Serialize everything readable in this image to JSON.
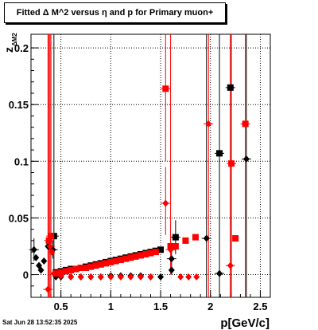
{
  "title": "Fitted Δ M^2 versus η and p for Primary muon+",
  "timestamp": "Sat Jun 28 13:52:35 2025",
  "chart_data": {
    "type": "scatter",
    "xlabel": "p[GeV/c]",
    "ylabel": "z",
    "ylabel_sub": "ΔM2",
    "xlim": [
      0.2,
      2.6
    ],
    "ylim": [
      -0.02,
      0.212
    ],
    "grid": true,
    "x_ticks": [
      {
        "value": 0.5,
        "label": "0.5"
      },
      {
        "value": 1.0,
        "label": "1"
      },
      {
        "value": 1.5,
        "label": "1.5"
      },
      {
        "value": 2.0,
        "label": "2"
      },
      {
        "value": 2.5,
        "label": "2.5"
      }
    ],
    "y_ticks": [
      {
        "value": 0,
        "label": "0"
      },
      {
        "value": 0.05,
        "label": "0.05"
      },
      {
        "value": 0.1,
        "label": "0.1"
      },
      {
        "value": 0.15,
        "label": "0.15"
      },
      {
        "value": 0.2,
        "label": "0.2"
      }
    ],
    "series": [
      {
        "color": "#000000",
        "marker": "square",
        "points": [
          {
            "x": 0.43,
            "y": 0.034,
            "ylo": -0.02,
            "yhi": 0.212
          },
          {
            "x": 0.45,
            "y": 0.002
          },
          {
            "x": 0.5,
            "y": 0.003
          },
          {
            "x": 0.55,
            "y": 0.004
          },
          {
            "x": 0.6,
            "y": 0.005
          },
          {
            "x": 0.65,
            "y": 0.005
          },
          {
            "x": 0.7,
            "y": 0.006
          },
          {
            "x": 0.75,
            "y": 0.007
          },
          {
            "x": 0.8,
            "y": 0.008
          },
          {
            "x": 0.85,
            "y": 0.009
          },
          {
            "x": 0.9,
            "y": 0.01
          },
          {
            "x": 0.95,
            "y": 0.011
          },
          {
            "x": 1.0,
            "y": 0.012
          },
          {
            "x": 1.05,
            "y": 0.013
          },
          {
            "x": 1.1,
            "y": 0.014
          },
          {
            "x": 1.15,
            "y": 0.015
          },
          {
            "x": 1.2,
            "y": 0.016
          },
          {
            "x": 1.25,
            "y": 0.017
          },
          {
            "x": 1.3,
            "y": 0.018
          },
          {
            "x": 1.35,
            "y": 0.019
          },
          {
            "x": 1.4,
            "y": 0.02
          },
          {
            "x": 1.45,
            "y": 0.021
          },
          {
            "x": 1.5,
            "y": 0.022
          },
          {
            "x": 1.65,
            "y": 0.033,
            "ylo": 0.018,
            "yhi": 0.048
          },
          {
            "x": 2.09,
            "y": 0.107,
            "ylo": 0.03,
            "yhi": 0.212
          },
          {
            "x": 2.2,
            "y": 0.165,
            "ylo": -0.02,
            "yhi": 0.212
          }
        ]
      },
      {
        "color": "#000000",
        "marker": "diamond",
        "points": [
          {
            "x": 0.23,
            "y": 0.022,
            "ylo": 0.012,
            "yhi": 0.032
          },
          {
            "x": 0.25,
            "y": 0.015
          },
          {
            "x": 0.28,
            "y": 0.008
          },
          {
            "x": 0.3,
            "y": 0.004
          },
          {
            "x": 0.33,
            "y": 0.012
          },
          {
            "x": 0.37,
            "y": 0.025
          },
          {
            "x": 0.42,
            "y": 0.022,
            "ylo": 0.014,
            "yhi": 0.03
          },
          {
            "x": 0.45,
            "y": -0.002
          },
          {
            "x": 0.5,
            "y": -0.002
          },
          {
            "x": 0.6,
            "y": -0.002
          },
          {
            "x": 0.7,
            "y": -0.002
          },
          {
            "x": 0.8,
            "y": -0.002
          },
          {
            "x": 0.9,
            "y": -0.002
          },
          {
            "x": 1.0,
            "y": -0.001
          },
          {
            "x": 1.1,
            "y": -0.001
          },
          {
            "x": 1.2,
            "y": -0.001
          },
          {
            "x": 1.3,
            "y": -0.001
          },
          {
            "x": 1.4,
            "y": -0.002
          },
          {
            "x": 1.5,
            "y": -0.002
          },
          {
            "x": 1.61,
            "y": 0.014,
            "ylo": 0.0,
            "yhi": 0.028
          },
          {
            "x": 1.61,
            "y": 0.004
          },
          {
            "x": 1.96,
            "y": 0.032,
            "ylo": -0.02,
            "yhi": 0.212
          },
          {
            "x": 2.09,
            "y": 0.001,
            "ylo": -0.02,
            "yhi": 0.03
          },
          {
            "x": 2.36,
            "y": 0.102,
            "ylo": -0.02,
            "yhi": 0.212
          }
        ]
      },
      {
        "color": "#ff0000",
        "marker": "square",
        "points": [
          {
            "x": 0.38,
            "y": 0.03,
            "ylo": -0.02,
            "yhi": 0.212
          },
          {
            "x": 0.4,
            "y": 0.034,
            "ylo": -0.02,
            "yhi": 0.212
          },
          {
            "x": 0.45,
            "y": 0.001
          },
          {
            "x": 0.5,
            "y": 0.002
          },
          {
            "x": 0.55,
            "y": 0.003
          },
          {
            "x": 0.6,
            "y": 0.004
          },
          {
            "x": 0.65,
            "y": 0.005
          },
          {
            "x": 0.7,
            "y": 0.006
          },
          {
            "x": 0.75,
            "y": 0.006
          },
          {
            "x": 0.8,
            "y": 0.007
          },
          {
            "x": 0.85,
            "y": 0.008
          },
          {
            "x": 0.9,
            "y": 0.009
          },
          {
            "x": 0.95,
            "y": 0.01
          },
          {
            "x": 1.0,
            "y": 0.011
          },
          {
            "x": 1.05,
            "y": 0.012
          },
          {
            "x": 1.1,
            "y": 0.013
          },
          {
            "x": 1.15,
            "y": 0.014
          },
          {
            "x": 1.2,
            "y": 0.015
          },
          {
            "x": 1.25,
            "y": 0.016
          },
          {
            "x": 1.3,
            "y": 0.017
          },
          {
            "x": 1.35,
            "y": 0.018
          },
          {
            "x": 1.4,
            "y": 0.019
          },
          {
            "x": 1.45,
            "y": 0.02
          },
          {
            "x": 1.55,
            "y": 0.164,
            "ylo": 0.1,
            "yhi": 0.212
          },
          {
            "x": 1.6,
            "y": 0.025
          },
          {
            "x": 1.65,
            "y": 0.025
          },
          {
            "x": 1.75,
            "y": 0.03
          },
          {
            "x": 1.85,
            "y": 0.033
          },
          {
            "x": 2.21,
            "y": 0.098,
            "ylo": -0.02,
            "yhi": 0.212
          },
          {
            "x": 2.25,
            "y": 0.032
          },
          {
            "x": 2.35,
            "y": 0.133,
            "ylo": -0.02,
            "yhi": 0.212
          }
        ]
      },
      {
        "color": "#ff0000",
        "marker": "diamond",
        "points": [
          {
            "x": 0.37,
            "y": -0.013,
            "ylo": -0.02,
            "yhi": 0.212
          },
          {
            "x": 0.39,
            "y": 0.025,
            "ylo": -0.02,
            "yhi": 0.212
          },
          {
            "x": 0.41,
            "y": 0.02
          },
          {
            "x": 0.43,
            "y": 0.001
          },
          {
            "x": 0.5,
            "y": -0.001
          },
          {
            "x": 0.6,
            "y": -0.002
          },
          {
            "x": 0.7,
            "y": -0.002
          },
          {
            "x": 0.8,
            "y": -0.002
          },
          {
            "x": 0.9,
            "y": -0.002
          },
          {
            "x": 1.0,
            "y": -0.002
          },
          {
            "x": 1.1,
            "y": -0.002
          },
          {
            "x": 1.2,
            "y": -0.002
          },
          {
            "x": 1.3,
            "y": -0.002
          },
          {
            "x": 1.4,
            "y": -0.002
          },
          {
            "x": 1.55,
            "y": 0.063,
            "ylo": 0.035,
            "yhi": 0.095
          },
          {
            "x": 1.6,
            "y": 0.022,
            "ylo": 0.0,
            "yhi": 0.212
          },
          {
            "x": 1.7,
            "y": -0.002
          },
          {
            "x": 1.78,
            "y": -0.002
          },
          {
            "x": 1.86,
            "y": -0.002
          },
          {
            "x": 1.98,
            "y": 0.133,
            "ylo": -0.02,
            "yhi": 0.212
          },
          {
            "x": 2.2,
            "y": 0.008,
            "ylo": -0.02,
            "yhi": 0.212
          }
        ]
      }
    ]
  }
}
